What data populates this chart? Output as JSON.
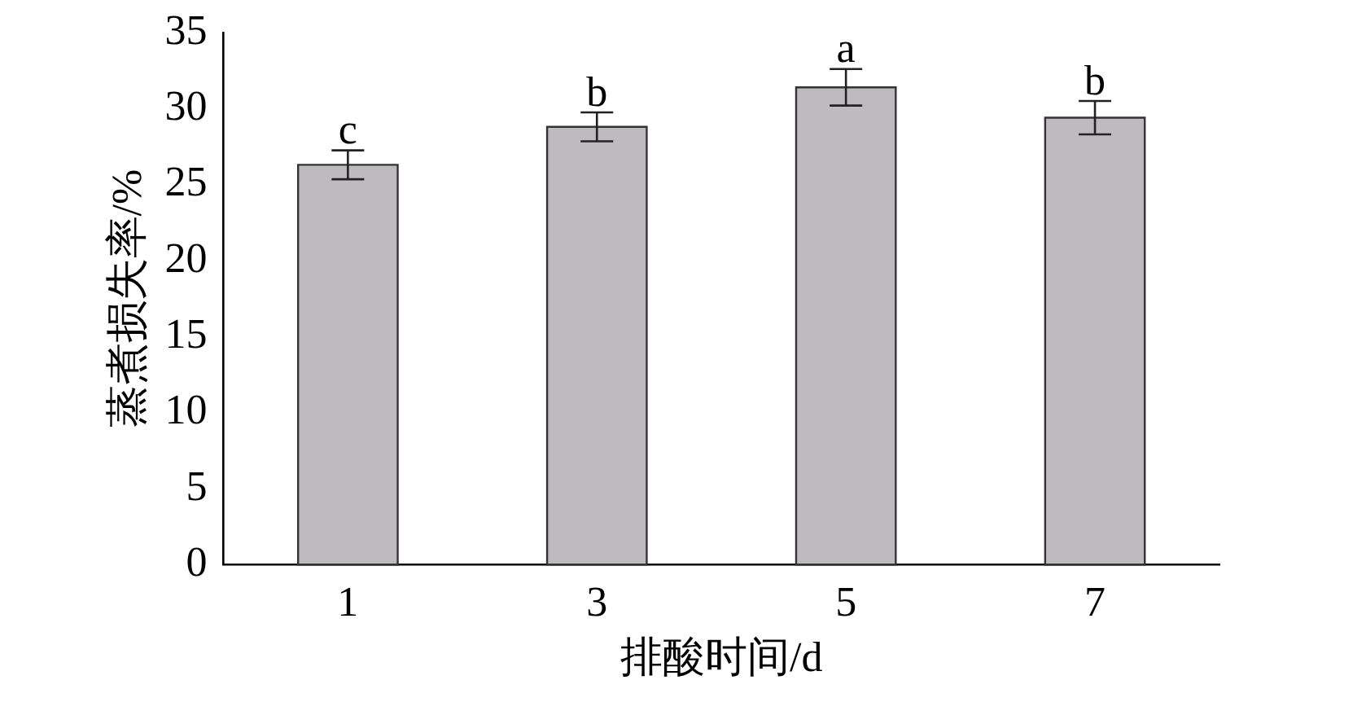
{
  "chart_data": {
    "type": "bar",
    "xlabel": "排酸时间/d",
    "ylabel": "蒸煮损失率/%",
    "categories": [
      "1",
      "3",
      "5",
      "7"
    ],
    "values": [
      26.3,
      28.8,
      31.4,
      29.4
    ],
    "errors": [
      0.95,
      0.95,
      1.2,
      1.1
    ],
    "color": "#bdbbbd",
    "ylim": [
      0,
      35
    ],
    "yticks": [
      0,
      5,
      10,
      15,
      20,
      25,
      30,
      35
    ],
    "annotations": [
      {
        "text": "c",
        "x": "1",
        "y": 27.25
      },
      {
        "text": "b",
        "x": "3",
        "y": 29.75
      },
      {
        "text": "a",
        "x": "5",
        "y": 32.6
      },
      {
        "text": "b",
        "x": "7",
        "y": 30.5
      }
    ]
  }
}
